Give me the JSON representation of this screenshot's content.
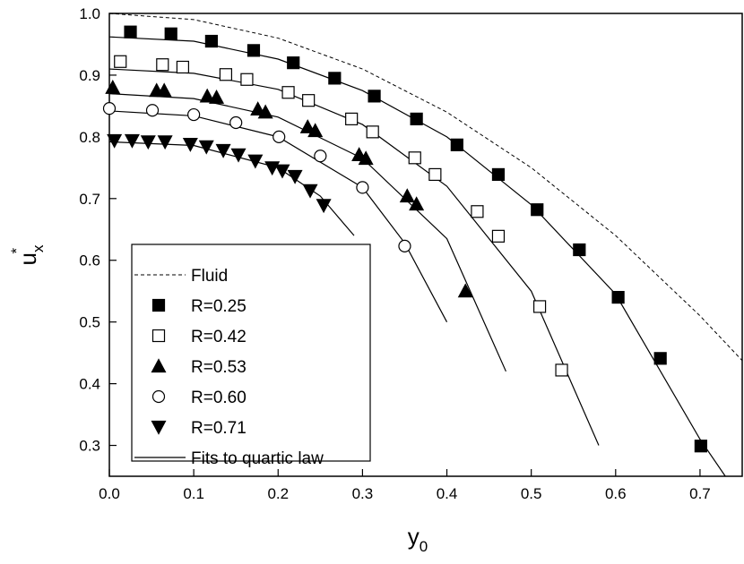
{
  "chart_data": {
    "type": "scatter",
    "xlabel": "y",
    "xlabel_sub": "0",
    "ylabel": "u",
    "ylabel_sub": "x",
    "ylabel_sup": "*",
    "xlim": [
      0,
      0.75
    ],
    "xticks": [
      {
        "value": 0,
        "label": "0.0"
      },
      0.1,
      0.2,
      0.3,
      0.4,
      0.5,
      0.6,
      0.7
    ],
    "ylim": [
      0.25,
      1.0
    ],
    "yticks": [
      0.3,
      0.4,
      0.5,
      0.6,
      0.7,
      0.8,
      0.9,
      {
        "value": 1,
        "label": "1.0"
      }
    ],
    "legend": "lower left",
    "fluid": {
      "name": "Fluid",
      "color": "#000000",
      "style": "dashed",
      "x": [
        0,
        0.1,
        0.2,
        0.3,
        0.4,
        0.5,
        0.6,
        0.7,
        0.75
      ],
      "values": [
        1.0,
        0.99,
        0.96,
        0.91,
        0.84,
        0.75,
        0.64,
        0.51,
        0.4375
      ]
    },
    "series": [
      {
        "name": "R=0.25",
        "color": "#000000",
        "marker": "square",
        "x": [
          0.025,
          0.073,
          0.121,
          0.171,
          0.218,
          0.267,
          0.314,
          0.364,
          0.412,
          0.461,
          0.507,
          0.557,
          0.603,
          0.653,
          0.701
        ],
        "values": [
          0.97,
          0.967,
          0.955,
          0.94,
          0.92,
          0.895,
          0.866,
          0.829,
          0.787,
          0.739,
          0.682,
          0.617,
          0.54,
          0.441,
          0.299
        ]
      },
      {
        "name": "R=0.42",
        "color": "#000000",
        "marker": "square-open",
        "x": [
          0.013,
          0.063,
          0.087,
          0.138,
          0.163,
          0.212,
          0.236,
          0.287,
          0.312,
          0.362,
          0.386,
          0.436,
          0.461,
          0.51,
          0.536
        ],
        "values": [
          0.922,
          0.917,
          0.913,
          0.901,
          0.893,
          0.872,
          0.859,
          0.829,
          0.808,
          0.766,
          0.739,
          0.679,
          0.639,
          0.525,
          0.422
        ]
      },
      {
        "name": "R=0.53",
        "color": "#000000",
        "marker": "triangle",
        "x": [
          0.004,
          0.056,
          0.065,
          0.116,
          0.127,
          0.176,
          0.185,
          0.235,
          0.244,
          0.296,
          0.304,
          0.353,
          0.364,
          0.422
        ],
        "values": [
          0.88,
          0.875,
          0.875,
          0.866,
          0.864,
          0.845,
          0.84,
          0.816,
          0.81,
          0.771,
          0.765,
          0.704,
          0.691,
          0.55
        ]
      },
      {
        "name": "R=0.60",
        "color": "#000000",
        "marker": "circle-open",
        "x": [
          0.0,
          0.051,
          0.1,
          0.15,
          0.201,
          0.25,
          0.3,
          0.35
        ],
        "values": [
          0.846,
          0.843,
          0.836,
          0.823,
          0.8,
          0.769,
          0.718,
          0.623
        ]
      },
      {
        "name": "R=0.71",
        "color": "#000000",
        "marker": "triangle-down",
        "x": [
          0.006,
          0.027,
          0.046,
          0.066,
          0.096,
          0.115,
          0.135,
          0.153,
          0.173,
          0.193,
          0.205,
          0.22,
          0.238,
          0.254
        ],
        "values": [
          0.794,
          0.794,
          0.792,
          0.792,
          0.788,
          0.784,
          0.778,
          0.771,
          0.761,
          0.75,
          0.745,
          0.736,
          0.713,
          0.689
        ]
      }
    ],
    "fits": {
      "name": "Fits to quartic law",
      "color": "#000000",
      "curves": [
        {
          "x": [
            0,
            0.1,
            0.2,
            0.3,
            0.4,
            0.5,
            0.6,
            0.7,
            0.73
          ],
          "values": [
            0.962,
            0.955,
            0.926,
            0.875,
            0.8,
            0.69,
            0.545,
            0.31,
            0.25
          ]
        },
        {
          "x": [
            0,
            0.1,
            0.2,
            0.3,
            0.4,
            0.5,
            0.58
          ],
          "values": [
            0.91,
            0.903,
            0.877,
            0.82,
            0.72,
            0.55,
            0.3
          ]
        },
        {
          "x": [
            0,
            0.1,
            0.2,
            0.3,
            0.4,
            0.47
          ],
          "values": [
            0.87,
            0.862,
            0.832,
            0.765,
            0.635,
            0.42
          ]
        },
        {
          "x": [
            0,
            0.1,
            0.2,
            0.3,
            0.35,
            0.4
          ],
          "values": [
            0.842,
            0.834,
            0.8,
            0.718,
            0.628,
            0.5
          ]
        },
        {
          "x": [
            0,
            0.1,
            0.2,
            0.25,
            0.29
          ],
          "values": [
            0.792,
            0.786,
            0.75,
            0.704,
            0.64
          ]
        }
      ]
    }
  }
}
